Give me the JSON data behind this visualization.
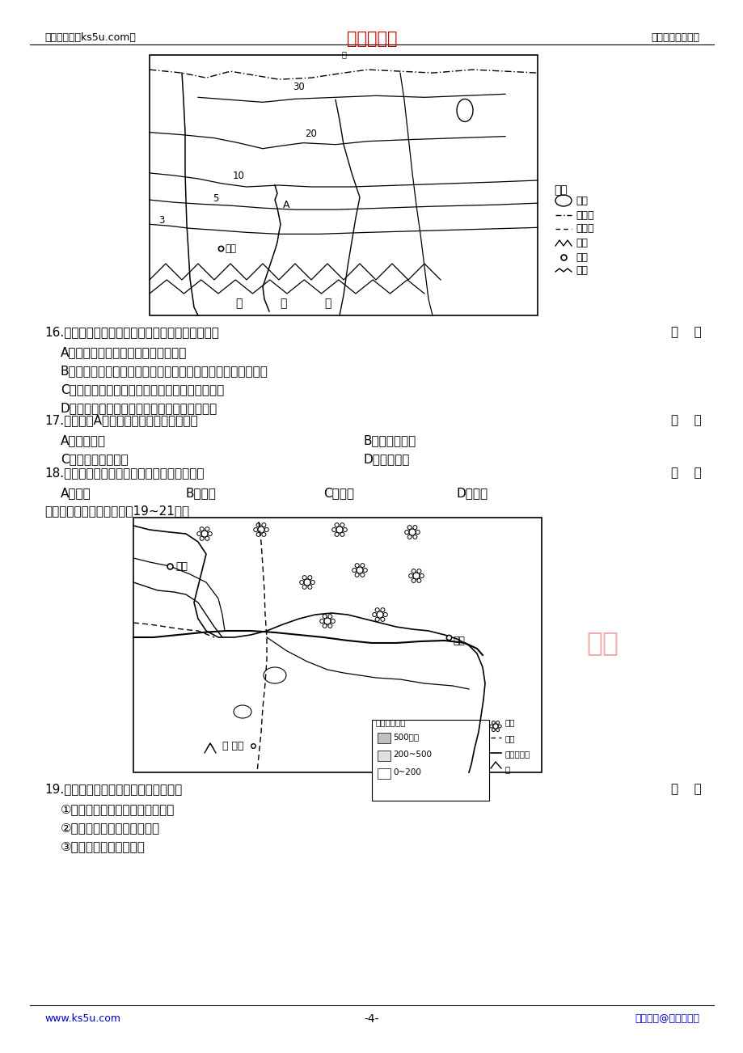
{
  "page_bg": "#ffffff",
  "header_left": "高考资源网（ks5u.com）",
  "header_center": "高考资源网",
  "header_center_color": "#cc0000",
  "header_right": "您身边的高考专家",
  "footer_left": "www.ks5u.com",
  "footer_left_color": "#0000cc",
  "footer_center": "-4-",
  "footer_right": "版权所有@高考资源网",
  "footer_right_color": "#0000cc",
  "q16_num": "16.",
  "q16_text": "图示区域干燥度大致由西南向东北递增的原因是",
  "q16_marker": "（    ）",
  "q16_A": "A．受夏季风影响，降水由东向西减少",
  "q16_B": "B．受地形影响，气流遇祁连山抬升，靠近祁连山的地区降水多",
  "q16_C": "C．受附近河流影响，河流水量自西南向东北减少",
  "q16_D": "D．受距海远近影响，北侧比南侧更靠近北冰洋",
  "q17_num": "17.",
  "q17_text": "关于图中A河水文特征的叙述，正确的是",
  "q17_marker": "（    ）",
  "q17_A": "A．含沙量小",
  "q17_B": "B．河流流量大",
  "q17_C": "C．汛期短，有夏汛",
  "q17_D": "D．无结冰期",
  "q18_num": "18.",
  "q18_text": "影响祁连山地区农业发展的主导区位因素是",
  "q18_marker": "（    ）",
  "q18_A": "A．水源",
  "q18_B": "B．热量",
  "q18_C": "C．地形",
  "q18_D": "D．光照",
  "q18_intro": "读我国某区域示意图，回答19~21题。",
  "q19_num": "19.",
  "q19_text": "图示区域棉花种植有利的区位条件有",
  "q19_marker": "（    ）",
  "q19_1": "①地处亚热带地区，太阳辐射较强",
  "q19_2": "②位于河流冲积平原，土质好",
  "q19_3": "③河网密度大，排灌方便"
}
